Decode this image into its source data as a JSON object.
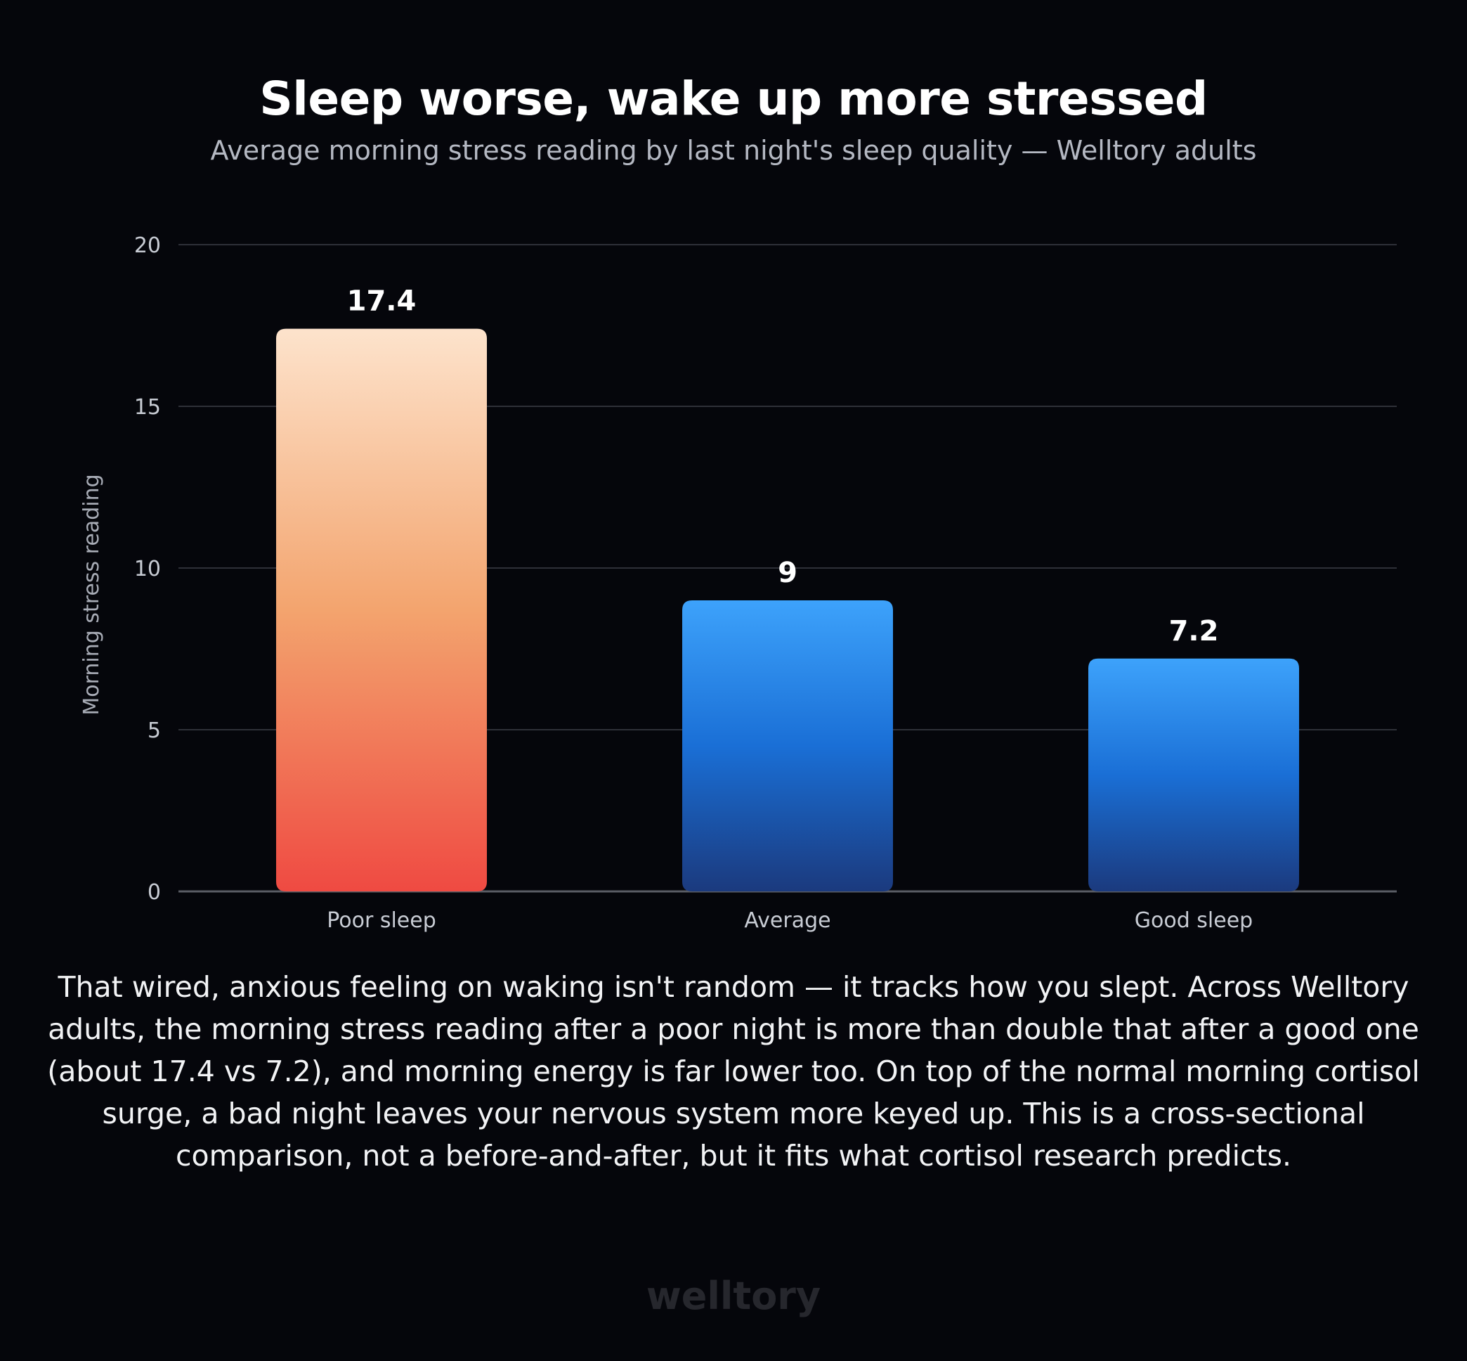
{
  "title": "Sleep worse, wake up more stressed",
  "subtitle": "Average morning stress reading by last night's sleep quality — Welltory adults",
  "body_text": "That wired, anxious feeling on waking isn't random — it tracks how you slept. Across Welltory adults, the morning stress reading after a poor night is more than double that after a good one (about 17.4 vs 7.2), and morning energy is far lower too. On top of the normal morning cortisol surge, a bad night leaves your nervous system more keyed up. This is a cross-sectional comparison, not a before-and-after, but it fits what cortisol research predicts.",
  "logo_text": "welltory",
  "colors": {
    "background": "#05060b",
    "poor_gradient_top": "#fde3cc",
    "poor_gradient_mid": "#f3a46e",
    "poor_gradient_bottom": "#ef4a42",
    "blue_gradient_top": "#3da2fb",
    "blue_gradient_mid": "#1a6fd6",
    "blue_gradient_bottom": "#1b3a7e",
    "gridline": "#2e3038",
    "baseline": "#5a5d66"
  },
  "chart_data": {
    "type": "bar",
    "title": "Sleep worse, wake up more stressed",
    "subtitle": "Average morning stress reading by last night's sleep quality — Welltory adults",
    "xlabel": "",
    "ylabel": "Morning stress reading",
    "categories": [
      "Poor sleep",
      "Average",
      "Good sleep"
    ],
    "values": [
      17.4,
      9,
      7.2
    ],
    "value_labels": [
      "17.4",
      "9",
      "7.2"
    ],
    "ylim": [
      0,
      20
    ],
    "yticks": [
      0,
      5,
      10,
      15,
      20
    ],
    "ytick_labels": [
      "0",
      "5",
      "10",
      "15",
      "20"
    ],
    "grid": true,
    "legend": "none",
    "bar_styles": [
      "poor",
      "blue",
      "blue"
    ]
  }
}
